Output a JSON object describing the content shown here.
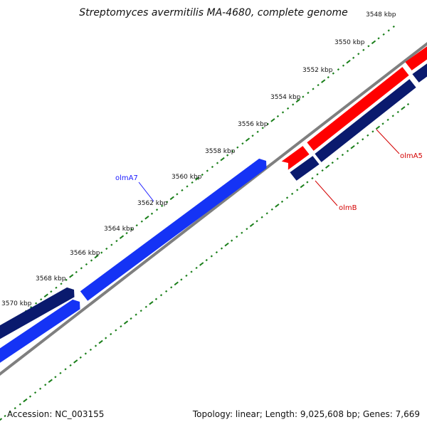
{
  "title": "Streptomyces avermitilis MA-4680, complete genome",
  "accession": "Accession: NC_003155",
  "summary": "Topology: linear; Length: 9,025,608 bp; Genes: 7,669",
  "colors": {
    "backbone": "#7f7f7f",
    "ticks": "#1a7f1a",
    "forward_dark": "#0a1a6e",
    "forward_bright": "#1533f5",
    "reverse_red": "#ff0000",
    "reverse_dark": "#0a1a6e",
    "label_blue": "#1a1aff",
    "label_red": "#d40000"
  },
  "ruler_labels": [
    "3548 kbp",
    "3550 kbp",
    "3552 kbp",
    "3554 kbp",
    "3556 kbp",
    "3558 kbp",
    "3560 kbp",
    "3562 kbp",
    "3564 kbp",
    "3566 kbp",
    "3568 kbp",
    "3570 kbp"
  ],
  "genes": [
    {
      "name": "olmA7",
      "color_key": "label_blue"
    },
    {
      "name": "olmB",
      "color_key": "label_red"
    },
    {
      "name": "olmA5",
      "color_key": "label_red"
    }
  ]
}
